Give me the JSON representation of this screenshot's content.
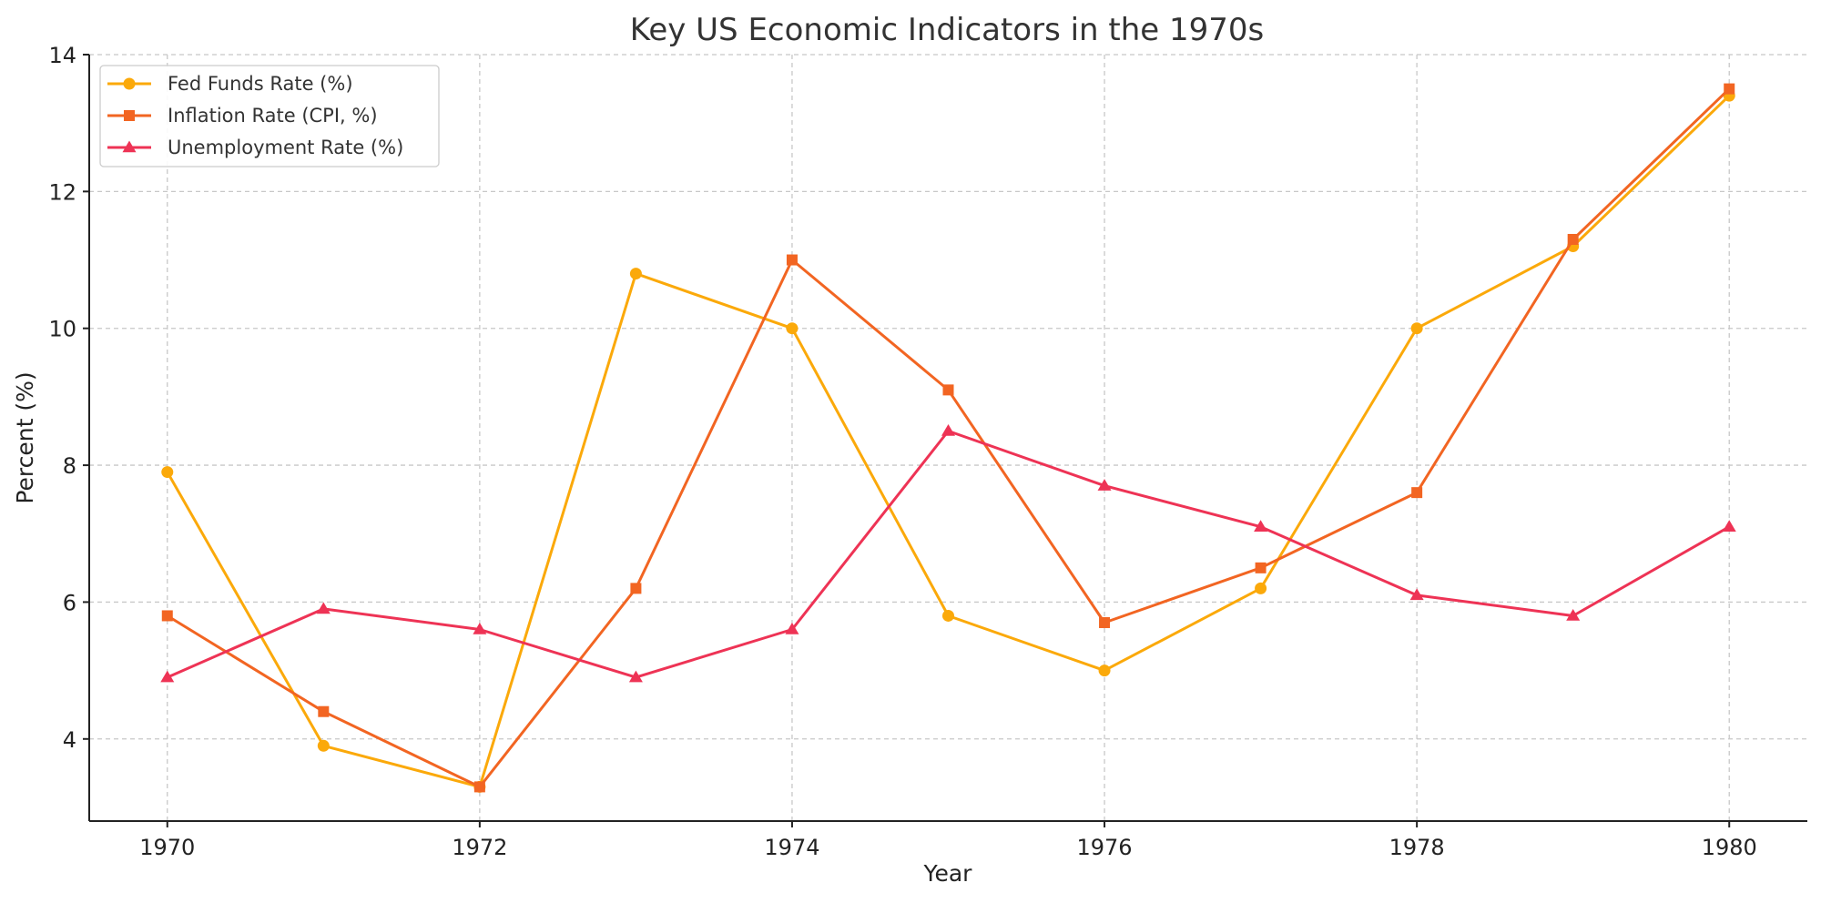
{
  "chart_data": {
    "type": "line",
    "title": "Key US Economic Indicators in the 1970s",
    "xlabel": "Year",
    "ylabel": "Percent (%)",
    "x": [
      1970,
      1971,
      1972,
      1973,
      1974,
      1975,
      1976,
      1977,
      1978,
      1979,
      1980
    ],
    "xlim": [
      1969.5,
      1980.5
    ],
    "ylim": [
      2.8,
      14
    ],
    "x_ticks": [
      1970,
      1972,
      1974,
      1976,
      1978,
      1980
    ],
    "y_ticks": [
      4,
      6,
      8,
      10,
      12,
      14
    ],
    "grid": true,
    "legend_position": "top-left",
    "series": [
      {
        "name": "Fed Funds Rate (%)",
        "color": "#FBA90A",
        "marker": "circle",
        "values": [
          7.9,
          3.9,
          3.3,
          10.8,
          10.0,
          5.8,
          5.0,
          6.2,
          10.0,
          11.2,
          13.4
        ]
      },
      {
        "name": "Inflation Rate (CPI, %)",
        "color": "#F26522",
        "marker": "square",
        "values": [
          5.8,
          4.4,
          3.3,
          6.2,
          11.0,
          9.1,
          5.7,
          6.5,
          7.6,
          11.3,
          13.5
        ]
      },
      {
        "name": "Unemployment Rate (%)",
        "color": "#EE3355",
        "marker": "triangle",
        "values": [
          4.9,
          5.9,
          5.6,
          4.9,
          5.6,
          8.5,
          7.7,
          7.1,
          6.1,
          5.8,
          7.1
        ]
      }
    ]
  }
}
